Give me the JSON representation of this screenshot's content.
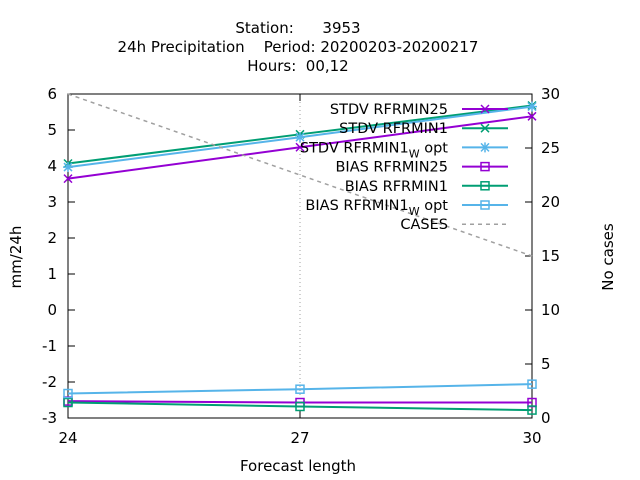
{
  "chart_data": {
    "type": "line",
    "title_lines": [
      "Station:      3953",
      "24h Precipitation    Period: 20200203-20200217",
      "Hours:  00,12"
    ],
    "xlabel": "Forecast length",
    "ylabel": "mm/24h",
    "y2label": "No cases",
    "x": [
      24,
      27,
      30
    ],
    "xlim": [
      24,
      30
    ],
    "ylim": [
      -3,
      6
    ],
    "y2lim": [
      0,
      30
    ],
    "xticks": [
      "24",
      "27",
      "30"
    ],
    "yticks": [
      "6",
      "5",
      "4",
      "3",
      "2",
      "1",
      "0",
      "-1",
      "-2",
      "-3"
    ],
    "y2ticks": [
      "30",
      "25",
      "20",
      "15",
      "10",
      "5",
      "0"
    ],
    "legend_position": "top-right",
    "grid": "vertical dotted at x=27",
    "series": [
      {
        "name": "STDV RFRMIN25",
        "sub": "",
        "axis": "y1",
        "values": [
          3.65,
          4.52,
          5.38
        ],
        "color": "#9400d3",
        "marker": "x",
        "dash": false
      },
      {
        "name": "STDV RFRMIN1",
        "sub": "",
        "axis": "y1",
        "values": [
          4.07,
          4.88,
          5.68
        ],
        "color": "#009e73",
        "marker": "x",
        "dash": false
      },
      {
        "name": "STDV RFRMIN1",
        "sub": "W",
        "suffix": " opt",
        "axis": "y1",
        "values": [
          3.97,
          4.8,
          5.65
        ],
        "color": "#56b4e9",
        "marker": "asterisk",
        "dash": false
      },
      {
        "name": "BIAS RFRMIN25",
        "sub": "",
        "axis": "y1",
        "values": [
          -2.53,
          -2.57,
          -2.57
        ],
        "color": "#9400d3",
        "marker": "square",
        "dash": false
      },
      {
        "name": "BIAS RFRMIN1",
        "sub": "",
        "axis": "y1",
        "values": [
          -2.57,
          -2.68,
          -2.78
        ],
        "color": "#009e73",
        "marker": "square",
        "dash": false
      },
      {
        "name": "BIAS RFRMIN1",
        "sub": "W",
        "suffix": " opt",
        "axis": "y1",
        "values": [
          -2.32,
          -2.2,
          -2.06
        ],
        "color": "#56b4e9",
        "marker": "square",
        "dash": false
      },
      {
        "name": "CASES",
        "sub": "",
        "axis": "y2",
        "values": [
          30,
          22.5,
          15
        ],
        "color": "#a0a0a0",
        "marker": "none",
        "dash": true
      }
    ]
  }
}
